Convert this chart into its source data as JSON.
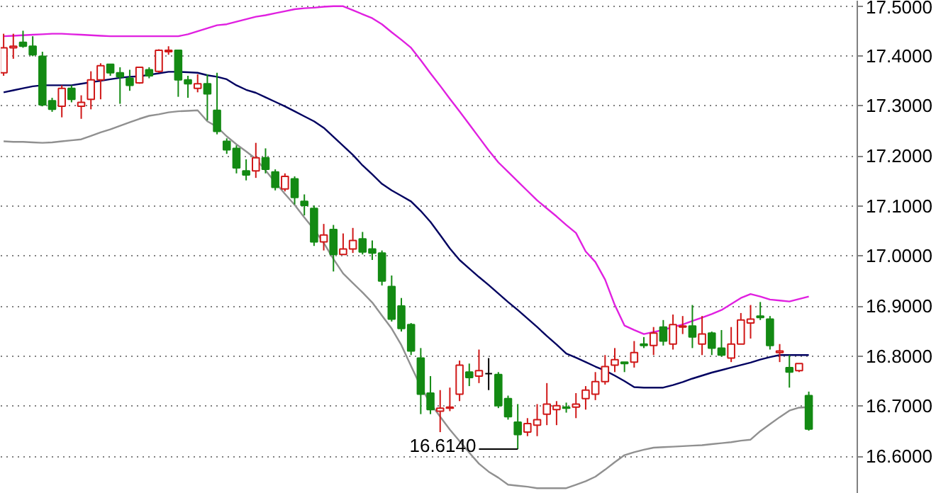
{
  "chart_data": {
    "type": "candlestick",
    "categories": [
      null,
      null,
      null,
      null,
      null,
      null,
      null,
      null,
      null,
      null,
      null,
      null,
      null,
      null,
      null,
      null,
      null,
      null,
      null,
      null,
      null,
      null,
      null,
      null,
      null,
      null,
      null,
      null,
      null,
      null,
      null,
      null,
      null,
      null,
      null,
      null,
      null,
      null,
      null,
      null,
      null,
      null,
      null,
      null,
      null,
      null,
      null,
      null,
      null,
      null,
      null,
      null,
      null,
      null,
      null,
      null,
      null,
      null,
      null,
      null,
      null,
      null,
      null,
      null,
      null,
      null,
      null,
      null,
      null,
      null,
      null,
      null,
      null,
      null,
      null,
      null,
      null,
      null,
      null,
      null,
      null,
      null,
      null,
      null
    ],
    "ylim": [
      16.525,
      17.51
    ],
    "yticks": [
      {
        "value": 16.6,
        "label": "16.6000"
      },
      {
        "value": 16.7,
        "label": "16.7000"
      },
      {
        "value": 16.8,
        "label": "16.8000"
      },
      {
        "value": 16.9,
        "label": "16.9000"
      },
      {
        "value": 17.0,
        "label": "17.0000"
      },
      {
        "value": 17.1,
        "label": "17.1000"
      },
      {
        "value": 17.2,
        "label": "17.2000"
      },
      {
        "value": 17.3,
        "label": "17.3000"
      },
      {
        "value": 17.4,
        "label": "17.4000"
      },
      {
        "value": 17.5,
        "label": "17.5000"
      }
    ],
    "tick_labels": "y",
    "grid": "y",
    "ohlc": [
      [
        17.366,
        17.444,
        17.36,
        17.416
      ],
      [
        17.416,
        17.444,
        17.394,
        17.419
      ],
      [
        17.427,
        17.45,
        17.416,
        17.419
      ],
      [
        17.419,
        17.439,
        17.399,
        17.402
      ],
      [
        17.399,
        17.408,
        17.299,
        17.302
      ],
      [
        17.31,
        17.316,
        17.288,
        17.293
      ],
      [
        17.299,
        17.341,
        17.277,
        17.335
      ],
      [
        17.335,
        17.341,
        17.307,
        17.313
      ],
      [
        17.299,
        17.321,
        17.274,
        17.307
      ],
      [
        17.313,
        17.369,
        17.293,
        17.352
      ],
      [
        17.352,
        17.385,
        17.313,
        17.38
      ],
      [
        17.383,
        17.383,
        17.36,
        17.366
      ],
      [
        17.366,
        17.377,
        17.304,
        17.358
      ],
      [
        17.355,
        17.372,
        17.33,
        17.341
      ],
      [
        17.346,
        17.377,
        17.344,
        17.377
      ],
      [
        17.372,
        17.377,
        17.355,
        17.36
      ],
      [
        17.369,
        17.413,
        17.366,
        17.411
      ],
      [
        17.408,
        17.419,
        17.402,
        17.411
      ],
      [
        17.411,
        17.411,
        17.318,
        17.352
      ],
      [
        17.352,
        17.36,
        17.316,
        17.344
      ],
      [
        17.335,
        17.363,
        17.327,
        17.344
      ],
      [
        17.344,
        17.363,
        17.271,
        17.324
      ],
      [
        17.291,
        17.366,
        17.243,
        17.249
      ],
      [
        17.229,
        17.235,
        17.204,
        17.212
      ],
      [
        17.215,
        17.221,
        17.165,
        17.176
      ],
      [
        17.17,
        17.193,
        17.151,
        17.162
      ],
      [
        17.17,
        17.226,
        17.156,
        17.196
      ],
      [
        17.196,
        17.215,
        17.165,
        17.173
      ],
      [
        17.168,
        17.173,
        17.131,
        17.137
      ],
      [
        17.134,
        17.165,
        17.129,
        17.159
      ],
      [
        17.154,
        17.159,
        17.103,
        17.117
      ],
      [
        17.109,
        17.123,
        17.081,
        17.101
      ],
      [
        17.095,
        17.101,
        17.02,
        17.028
      ],
      [
        17.028,
        17.064,
        17.011,
        17.042
      ],
      [
        17.053,
        17.062,
        16.969,
        17.003
      ],
      [
        17.003,
        17.045,
        17.003,
        17.014
      ],
      [
        17.014,
        17.056,
        17.006,
        17.031
      ],
      [
        17.034,
        17.048,
        17.003,
        17.008
      ],
      [
        17.014,
        17.031,
        16.992,
        17.006
      ],
      [
        17.006,
        17.011,
        16.941,
        16.95
      ],
      [
        16.939,
        16.961,
        16.869,
        16.874
      ],
      [
        16.9,
        16.916,
        16.849,
        16.855
      ],
      [
        16.863,
        16.866,
        16.802,
        16.81
      ],
      [
        16.796,
        16.816,
        16.684,
        16.724
      ],
      [
        16.726,
        16.76,
        16.684,
        16.693
      ],
      [
        16.69,
        16.732,
        16.648,
        16.696
      ],
      [
        16.696,
        16.737,
        16.69,
        16.698
      ],
      [
        16.724,
        16.791,
        16.71,
        16.782
      ],
      [
        16.768,
        16.785,
        16.74,
        16.757
      ],
      [
        16.76,
        16.813,
        16.746,
        16.771
      ],
      [
        16.765,
        16.796,
        16.732,
        16.765
      ],
      [
        16.763,
        16.768,
        16.696,
        16.701
      ],
      [
        16.715,
        16.721,
        16.673,
        16.679
      ],
      [
        16.668,
        16.704,
        16.614,
        16.643
      ],
      [
        16.648,
        16.676,
        16.64,
        16.665
      ],
      [
        16.662,
        16.704,
        16.64,
        16.673
      ],
      [
        16.684,
        16.746,
        16.662,
        16.704
      ],
      [
        16.693,
        16.71,
        16.662,
        16.701
      ],
      [
        16.698,
        16.707,
        16.687,
        16.696
      ],
      [
        16.698,
        16.726,
        16.676,
        16.704
      ],
      [
        16.715,
        16.74,
        16.693,
        16.732
      ],
      [
        16.724,
        16.768,
        16.712,
        16.749
      ],
      [
        16.749,
        16.802,
        16.743,
        16.779
      ],
      [
        16.782,
        16.816,
        16.768,
        16.793
      ],
      [
        16.788,
        16.788,
        16.768,
        16.785
      ],
      [
        16.788,
        16.83,
        16.777,
        16.807
      ],
      [
        16.824,
        16.838,
        16.816,
        16.821
      ],
      [
        16.821,
        16.858,
        16.802,
        16.846
      ],
      [
        16.858,
        16.872,
        16.821,
        16.83
      ],
      [
        16.824,
        16.883,
        16.813,
        16.863
      ],
      [
        16.858,
        16.88,
        16.844,
        16.86
      ],
      [
        16.86,
        16.902,
        16.816,
        16.838
      ],
      [
        16.824,
        16.88,
        16.802,
        16.844
      ],
      [
        16.846,
        16.849,
        16.802,
        16.816
      ],
      [
        16.816,
        16.852,
        16.799,
        16.802
      ],
      [
        16.796,
        16.858,
        16.788,
        16.824
      ],
      [
        16.824,
        16.886,
        16.824,
        16.872
      ],
      [
        16.866,
        16.902,
        16.835,
        16.874
      ],
      [
        16.88,
        16.908,
        16.872,
        16.877
      ],
      [
        16.874,
        16.88,
        16.813,
        16.821
      ],
      [
        16.807,
        16.824,
        16.788,
        16.81
      ],
      [
        16.777,
        16.802,
        16.737,
        16.768
      ],
      [
        16.771,
        16.785,
        16.768,
        16.785
      ],
      [
        16.721,
        16.729,
        16.651,
        16.654
      ]
    ],
    "colors": [
      "#d01818",
      "#d01818",
      "#138a13",
      "#138a13",
      "#138a13",
      "#138a13",
      "#d01818",
      "#138a13",
      "#d01818",
      "#d01818",
      "#d01818",
      "#138a13",
      "#138a13",
      "#138a13",
      "#d01818",
      "#138a13",
      "#d01818",
      "#d01818",
      "#138a13",
      "#138a13",
      "#d01818",
      "#138a13",
      "#138a13",
      "#138a13",
      "#138a13",
      "#138a13",
      "#d01818",
      "#138a13",
      "#138a13",
      "#d01818",
      "#138a13",
      "#138a13",
      "#138a13",
      "#d01818",
      "#138a13",
      "#d01818",
      "#d01818",
      "#138a13",
      "#138a13",
      "#138a13",
      "#138a13",
      "#138a13",
      "#138a13",
      "#138a13",
      "#138a13",
      "#d01818",
      "#d01818",
      "#d01818",
      "#138a13",
      "#d01818",
      "#000000",
      "#138a13",
      "#138a13",
      "#138a13",
      "#d01818",
      "#d01818",
      "#d01818",
      "#d01818",
      "#138a13",
      "#d01818",
      "#d01818",
      "#d01818",
      "#d01818",
      "#d01818",
      "#138a13",
      "#d01818",
      "#138a13",
      "#d01818",
      "#138a13",
      "#d01818",
      "#d01818",
      "#138a13",
      "#d01818",
      "#138a13",
      "#138a13",
      "#d01818",
      "#d01818",
      "#d01818",
      "#138a13",
      "#138a13",
      "#d01818",
      "#138a13",
      "#d01818",
      "#138a13"
    ],
    "series": [
      {
        "type": "line",
        "color": "#e020e0",
        "values": [
          17.439,
          17.44,
          17.441,
          17.442,
          17.443,
          17.444,
          17.444,
          17.443,
          17.442,
          17.441,
          17.44,
          17.439,
          17.439,
          17.439,
          17.439,
          17.439,
          17.439,
          17.439,
          17.439,
          17.443,
          17.449,
          17.455,
          17.461,
          17.463,
          17.468,
          17.473,
          17.478,
          17.481,
          17.485,
          17.489,
          17.493,
          17.495,
          17.496,
          17.498,
          17.499,
          17.499,
          17.491,
          17.483,
          17.475,
          17.463,
          17.447,
          17.432,
          17.416,
          17.391,
          17.365,
          17.34,
          17.314,
          17.289,
          17.263,
          17.237,
          17.211,
          17.187,
          17.168,
          17.149,
          17.13,
          17.111,
          17.095,
          17.079,
          17.062,
          17.046,
          17.009,
          16.988,
          16.953,
          16.902,
          16.861,
          16.852,
          16.844,
          16.848,
          16.852,
          16.858,
          16.863,
          16.87,
          16.877,
          16.884,
          16.892,
          16.904,
          16.916,
          16.924,
          16.919,
          16.913,
          16.911,
          16.909,
          16.914,
          16.919
        ]
      },
      {
        "type": "line",
        "color": "#000060",
        "values": [
          17.327,
          17.331,
          17.335,
          17.339,
          17.341,
          17.341,
          17.341,
          17.341,
          17.344,
          17.347,
          17.35,
          17.353,
          17.356,
          17.358,
          17.359,
          17.362,
          17.365,
          17.368,
          17.368,
          17.367,
          17.366,
          17.361,
          17.358,
          17.353,
          17.341,
          17.332,
          17.326,
          17.317,
          17.308,
          17.299,
          17.289,
          17.279,
          17.269,
          17.256,
          17.238,
          17.22,
          17.202,
          17.181,
          17.163,
          17.144,
          17.131,
          17.12,
          17.109,
          17.09,
          17.068,
          17.042,
          17.015,
          16.992,
          16.975,
          16.958,
          16.942,
          16.925,
          16.908,
          16.892,
          16.875,
          16.858,
          16.84,
          16.823,
          16.805,
          16.797,
          16.788,
          16.779,
          16.771,
          16.761,
          16.75,
          16.738,
          16.737,
          16.737,
          16.737,
          16.742,
          16.748,
          16.755,
          16.761,
          16.767,
          16.772,
          16.777,
          16.782,
          16.787,
          16.793,
          16.798,
          16.802,
          16.802,
          16.802,
          16.802
        ]
      },
      {
        "type": "line",
        "color": "#909090",
        "values": [
          17.229,
          17.228,
          17.228,
          17.227,
          17.226,
          17.227,
          17.229,
          17.231,
          17.233,
          17.24,
          17.247,
          17.253,
          17.26,
          17.267,
          17.274,
          17.28,
          17.283,
          17.287,
          17.289,
          17.29,
          17.291,
          17.269,
          17.258,
          17.239,
          17.223,
          17.209,
          17.194,
          17.171,
          17.147,
          17.124,
          17.102,
          17.077,
          17.053,
          17.026,
          16.994,
          16.965,
          16.946,
          16.927,
          16.907,
          16.881,
          16.855,
          16.822,
          16.78,
          16.739,
          16.705,
          16.679,
          16.653,
          16.63,
          16.607,
          16.585,
          16.569,
          16.557,
          16.543,
          16.541,
          16.539,
          16.536,
          16.536,
          16.536,
          16.536,
          16.543,
          16.55,
          16.559,
          16.573,
          16.588,
          16.602,
          16.608,
          16.613,
          16.617,
          16.618,
          16.619,
          16.62,
          16.621,
          16.622,
          16.624,
          16.626,
          16.628,
          16.631,
          16.633,
          16.65,
          16.664,
          16.678,
          16.691,
          16.697,
          16.698
        ]
      }
    ],
    "annotations": [
      "16.6140"
    ]
  }
}
